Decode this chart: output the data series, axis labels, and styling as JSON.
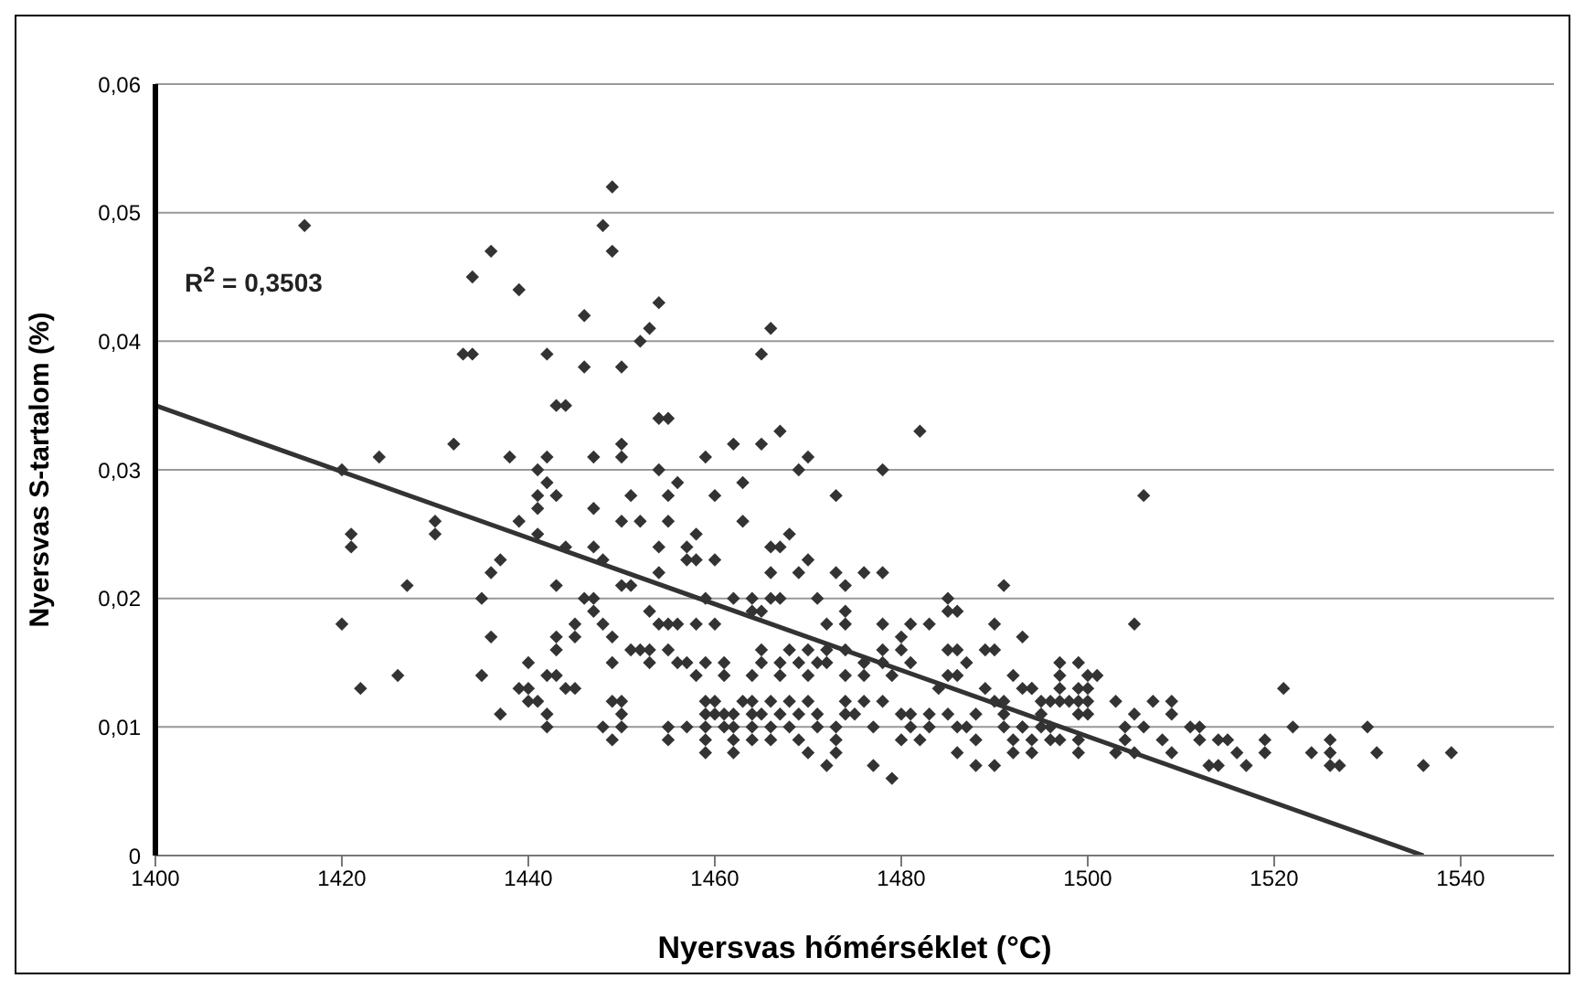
{
  "chart_data": {
    "type": "scatter",
    "xlabel": "Nyersvas hőmérséklet (°C)",
    "ylabel": "Nyersvas S-tartalom (%)",
    "xlim": [
      1400,
      1550
    ],
    "xticks": [
      1400,
      1420,
      1440,
      1460,
      1480,
      1500,
      1520,
      1540
    ],
    "ylim": [
      0,
      0.06
    ],
    "yticks": [
      {
        "value": 0,
        "label": "0"
      },
      {
        "value": 0.01,
        "label": "0,01"
      },
      {
        "value": 0.02,
        "label": "0,02"
      },
      {
        "value": 0.03,
        "label": "0,03"
      },
      {
        "value": 0.04,
        "label": "0,04"
      },
      {
        "value": 0.05,
        "label": "0,05"
      },
      {
        "value": 0.06,
        "label": "0,06"
      }
    ],
    "grid": "y",
    "annotations": [
      "R$^{2}$ = 0,3503"
    ],
    "series": [
      {
        "color": "#333333",
        "marker": "diamond",
        "x": [
          1416,
          1420,
          1421,
          1421,
          1420,
          1422,
          1424,
          1426,
          1427,
          1430,
          1430,
          1432,
          1433,
          1434,
          1434,
          1436,
          1435,
          1436,
          1437,
          1436,
          1435,
          1437,
          1439,
          1438,
          1439,
          1440,
          1439,
          1440,
          1440,
          1441,
          1441,
          1441,
          1442,
          1441,
          1441,
          1442,
          1442,
          1443,
          1443,
          1444,
          1444,
          1443,
          1442,
          1443,
          1443,
          1443,
          1442,
          1442,
          1444,
          1445,
          1445,
          1445,
          1446,
          1446,
          1446,
          1449,
          1448,
          1449,
          1454,
          1453,
          1452,
          1450,
          1465,
          1466,
          1454,
          1455,
          1482,
          1467,
          1462,
          1465,
          1450,
          1450,
          1459,
          1470,
          1469,
          1478,
          1447,
          1454,
          1456,
          1455,
          1451,
          1460,
          1463,
          1473,
          1447,
          1450,
          1452,
          1455,
          1463,
          1458,
          1468,
          1454,
          1457,
          1466,
          1467,
          1447,
          1457,
          1458,
          1460,
          1470,
          1448,
          1454,
          1466,
          1469,
          1473,
          1476,
          1478,
          1450,
          1451,
          1474,
          1491,
          1459,
          1462,
          1464,
          1466,
          1467,
          1471,
          1485,
          1447,
          1447,
          1453,
          1454,
          1455,
          1456,
          1458,
          1460,
          1464,
          1465,
          1472,
          1474,
          1474,
          1478,
          1481,
          1483,
          1485,
          1486,
          1490,
          1448,
          1449,
          1451,
          1452,
          1453,
          1455,
          1465,
          1468,
          1470,
          1472,
          1474,
          1478,
          1480,
          1485,
          1486,
          1489,
          1490,
          1493,
          1480,
          1449,
          1453,
          1456,
          1457,
          1459,
          1461,
          1465,
          1467,
          1469,
          1471,
          1472,
          1476,
          1478,
          1481,
          1487,
          1458,
          1461,
          1464,
          1467,
          1470,
          1474,
          1476,
          1479,
          1485,
          1486,
          1492,
          1449,
          1450,
          1459,
          1460,
          1463,
          1464,
          1466,
          1468,
          1470,
          1474,
          1476,
          1478,
          1484,
          1489,
          1490,
          1491,
          1493,
          1494,
          1495,
          1450,
          1448,
          1450,
          1459,
          1460,
          1461,
          1462,
          1464,
          1465,
          1467,
          1469,
          1471,
          1474,
          1475,
          1480,
          1481,
          1483,
          1485,
          1488,
          1491,
          1455,
          1457,
          1459,
          1461,
          1462,
          1464,
          1466,
          1468,
          1471,
          1473,
          1477,
          1481,
          1483,
          1486,
          1487,
          1491,
          1493,
          1495,
          1449,
          1455,
          1459,
          1462,
          1464,
          1466,
          1469,
          1473,
          1480,
          1482,
          1488,
          1492,
          1494,
          1459,
          1462,
          1470,
          1473,
          1472,
          1477,
          1479,
          1486,
          1488,
          1490,
          1492,
          1494,
          1506,
          1505,
          1497,
          1499,
          1497,
          1500,
          1501,
          1494,
          1497,
          1499,
          1500,
          1496,
          1497,
          1498,
          1499,
          1500,
          1503,
          1507,
          1509,
          1495,
          1499,
          1500,
          1505,
          1509,
          1521,
          1493,
          1496,
          1504,
          1506,
          1511,
          1512,
          1522,
          1530,
          1496,
          1497,
          1499,
          1504,
          1508,
          1512,
          1514,
          1515,
          1519,
          1526,
          1499,
          1503,
          1505,
          1509,
          1516,
          1519,
          1524,
          1526,
          1531,
          1539,
          1513,
          1514,
          1517,
          1526,
          1527,
          1536
        ],
        "values": [
          0.049,
          0.03,
          0.025,
          0.024,
          0.018,
          0.013,
          0.031,
          0.014,
          0.021,
          0.026,
          0.025,
          0.032,
          0.039,
          0.039,
          0.045,
          0.047,
          0.02,
          0.022,
          0.023,
          0.017,
          0.014,
          0.011,
          0.044,
          0.031,
          0.026,
          0.015,
          0.013,
          0.013,
          0.012,
          0.012,
          0.03,
          0.028,
          0.029,
          0.027,
          0.025,
          0.039,
          0.031,
          0.028,
          0.035,
          0.035,
          0.024,
          0.021,
          0.014,
          0.014,
          0.017,
          0.016,
          0.011,
          0.01,
          0.013,
          0.013,
          0.018,
          0.017,
          0.042,
          0.038,
          0.02,
          0.052,
          0.049,
          0.047,
          0.043,
          0.041,
          0.04,
          0.038,
          0.039,
          0.041,
          0.034,
          0.034,
          0.033,
          0.033,
          0.032,
          0.032,
          0.032,
          0.031,
          0.031,
          0.031,
          0.03,
          0.03,
          0.031,
          0.03,
          0.029,
          0.028,
          0.028,
          0.028,
          0.029,
          0.028,
          0.027,
          0.026,
          0.026,
          0.026,
          0.026,
          0.025,
          0.025,
          0.024,
          0.024,
          0.024,
          0.024,
          0.024,
          0.023,
          0.023,
          0.023,
          0.023,
          0.023,
          0.022,
          0.022,
          0.022,
          0.022,
          0.022,
          0.022,
          0.021,
          0.021,
          0.021,
          0.021,
          0.02,
          0.02,
          0.02,
          0.02,
          0.02,
          0.02,
          0.02,
          0.02,
          0.019,
          0.019,
          0.018,
          0.018,
          0.018,
          0.018,
          0.018,
          0.019,
          0.019,
          0.018,
          0.019,
          0.018,
          0.018,
          0.018,
          0.018,
          0.019,
          0.019,
          0.018,
          0.018,
          0.017,
          0.016,
          0.016,
          0.016,
          0.016,
          0.016,
          0.016,
          0.016,
          0.016,
          0.016,
          0.016,
          0.016,
          0.016,
          0.016,
          0.016,
          0.016,
          0.017,
          0.017,
          0.015,
          0.015,
          0.015,
          0.015,
          0.015,
          0.015,
          0.015,
          0.015,
          0.015,
          0.015,
          0.015,
          0.015,
          0.015,
          0.015,
          0.015,
          0.014,
          0.014,
          0.014,
          0.014,
          0.014,
          0.014,
          0.014,
          0.014,
          0.014,
          0.014,
          0.014,
          0.012,
          0.012,
          0.012,
          0.012,
          0.012,
          0.012,
          0.012,
          0.012,
          0.012,
          0.012,
          0.012,
          0.012,
          0.013,
          0.013,
          0.012,
          0.012,
          0.013,
          0.013,
          0.012,
          0.011,
          0.01,
          0.01,
          0.011,
          0.011,
          0.011,
          0.011,
          0.011,
          0.011,
          0.011,
          0.011,
          0.011,
          0.011,
          0.011,
          0.011,
          0.011,
          0.011,
          0.011,
          0.011,
          0.011,
          0.01,
          0.01,
          0.01,
          0.01,
          0.01,
          0.01,
          0.01,
          0.01,
          0.01,
          0.01,
          0.01,
          0.01,
          0.01,
          0.01,
          0.01,
          0.01,
          0.01,
          0.01,
          0.009,
          0.009,
          0.009,
          0.009,
          0.009,
          0.009,
          0.009,
          0.009,
          0.009,
          0.009,
          0.009,
          0.009,
          0.009,
          0.008,
          0.008,
          0.008,
          0.008,
          0.007,
          0.007,
          0.006,
          0.008,
          0.007,
          0.007,
          0.008,
          0.008,
          0.028,
          0.018,
          0.015,
          0.015,
          0.014,
          0.014,
          0.014,
          0.013,
          0.013,
          0.013,
          0.013,
          0.012,
          0.012,
          0.012,
          0.012,
          0.012,
          0.012,
          0.012,
          0.012,
          0.011,
          0.011,
          0.011,
          0.011,
          0.011,
          0.013,
          0.01,
          0.01,
          0.01,
          0.01,
          0.01,
          0.01,
          0.01,
          0.01,
          0.009,
          0.009,
          0.009,
          0.009,
          0.009,
          0.009,
          0.009,
          0.009,
          0.009,
          0.009,
          0.008,
          0.008,
          0.008,
          0.008,
          0.008,
          0.008,
          0.008,
          0.008,
          0.008,
          0.008,
          0.007,
          0.007,
          0.007,
          0.007,
          0.007,
          0.007
        ]
      },
      {
        "type": "line",
        "color": "#333333",
        "marker": "none",
        "x": [
          1400,
          1536
        ],
        "values": [
          0.035,
          0
        ]
      }
    ]
  }
}
